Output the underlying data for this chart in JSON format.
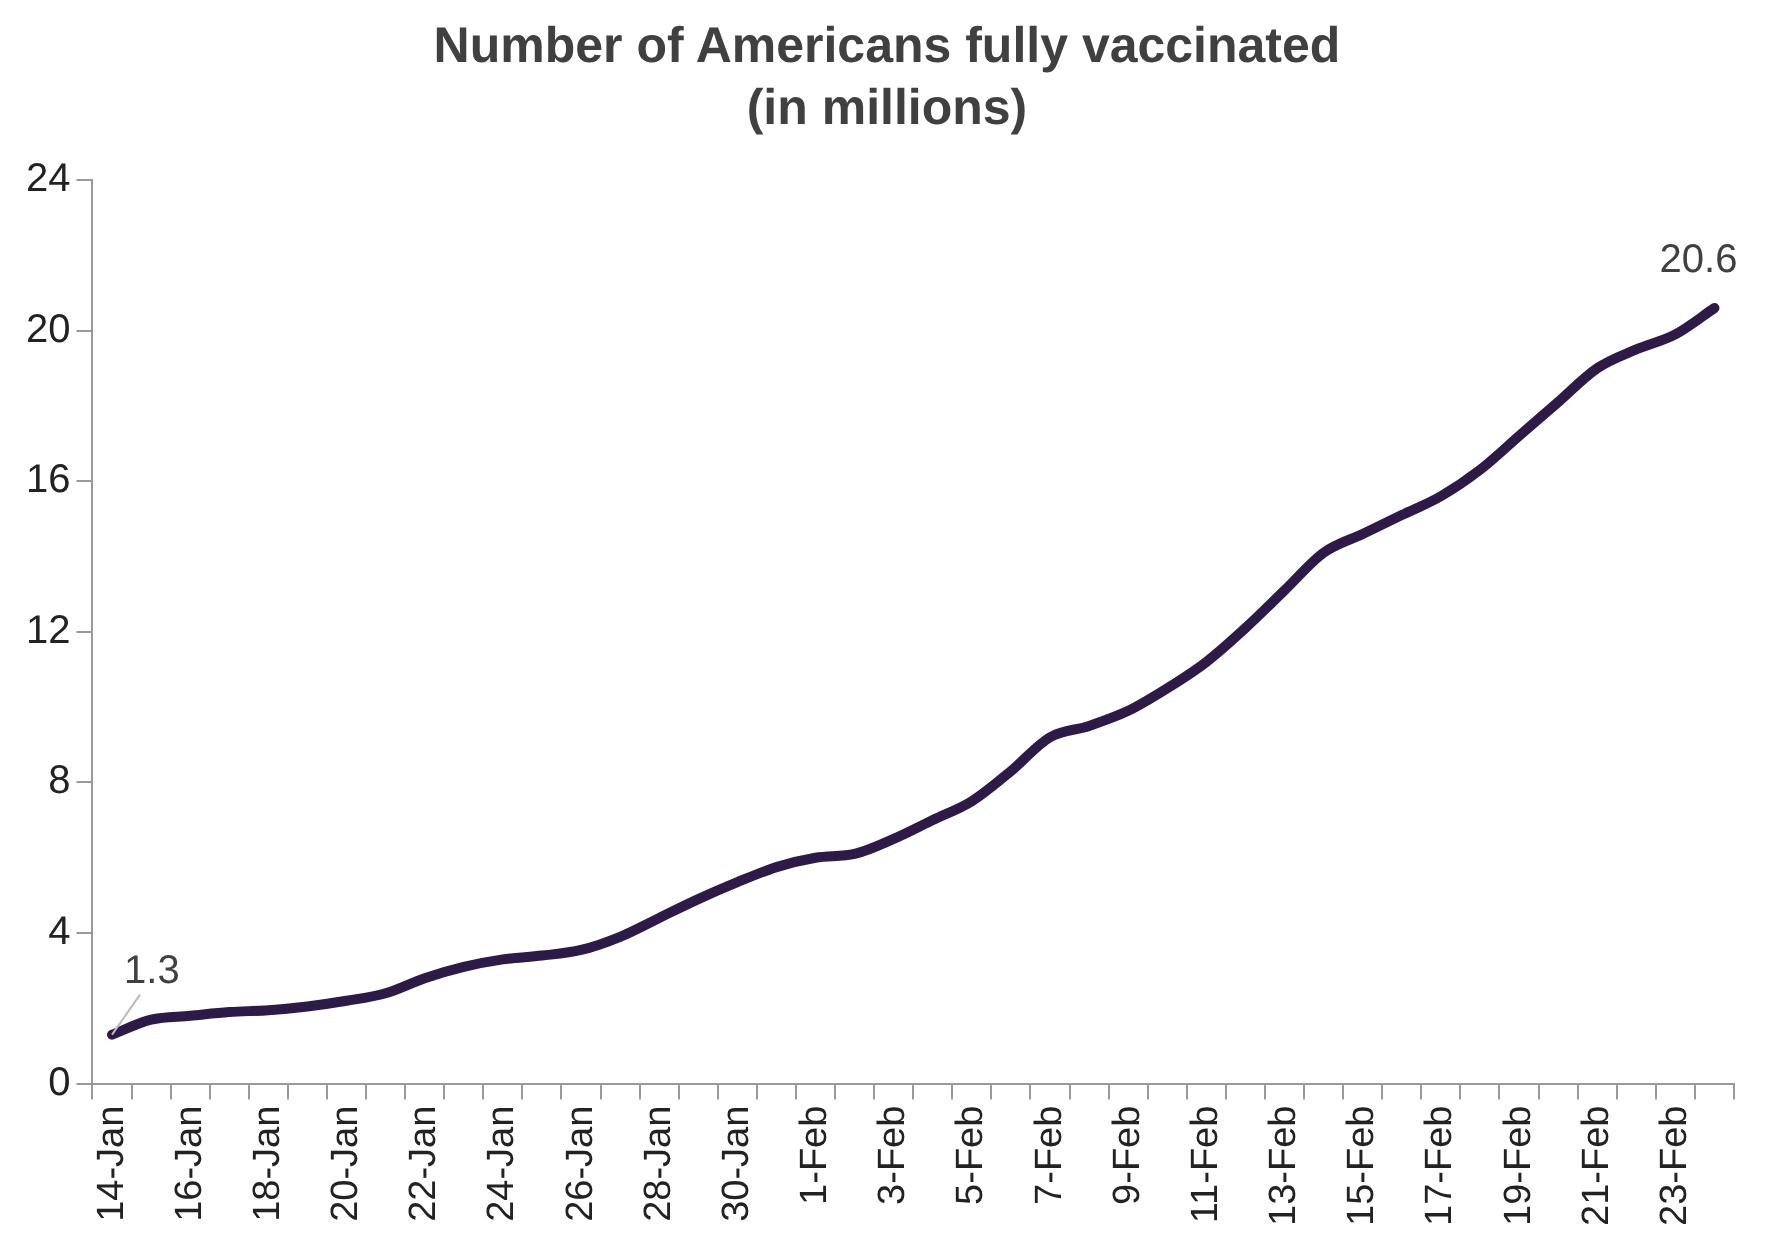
{
  "chart_data": {
    "type": "line",
    "title": "Number of Americans fully vaccinated (in millions)",
    "categories": [
      "14-Jan",
      null,
      "16-Jan",
      null,
      "18-Jan",
      null,
      "20-Jan",
      null,
      "22-Jan",
      null,
      "24-Jan",
      null,
      "26-Jan",
      null,
      "28-Jan",
      null,
      "30-Jan",
      null,
      "1-Feb",
      null,
      "3-Feb",
      null,
      "5-Feb",
      null,
      "7-Feb",
      null,
      "9-Feb",
      null,
      "11-Feb",
      null,
      "13-Feb",
      null,
      "15-Feb",
      null,
      "17-Feb",
      null,
      "19-Feb",
      null,
      "21-Feb",
      null,
      "23-Feb",
      null
    ],
    "series": [
      {
        "color": "#2e1a47",
        "values": [
          1.3,
          1.7,
          1.8,
          1.9,
          1.95,
          2.05,
          2.2,
          2.4,
          2.8,
          3.1,
          3.3,
          3.4,
          3.55,
          3.9,
          4.4,
          4.9,
          5.35,
          5.75,
          6.0,
          6.1,
          6.5,
          7.0,
          7.5,
          8.3,
          9.2,
          9.5,
          9.9,
          10.5,
          11.2,
          12.1,
          13.1,
          14.1,
          14.6,
          15.1,
          15.6,
          16.3,
          17.2,
          18.1,
          19.0,
          19.5,
          19.9,
          20.6
        ],
        "value_labels": [
          "1.3",
          null,
          null,
          null,
          null,
          null,
          null,
          null,
          null,
          null,
          null,
          null,
          null,
          null,
          null,
          null,
          null,
          null,
          null,
          null,
          null,
          null,
          null,
          null,
          null,
          null,
          null,
          null,
          null,
          null,
          null,
          null,
          null,
          null,
          null,
          null,
          null,
          null,
          null,
          null,
          null,
          "20.6"
        ]
      }
    ],
    "ylim": [
      0,
      24
    ],
    "yticks": [
      0,
      4,
      8,
      12,
      16,
      20,
      24
    ],
    "grid": false,
    "legend": false,
    "marker": "none",
    "line_style": "solid"
  }
}
